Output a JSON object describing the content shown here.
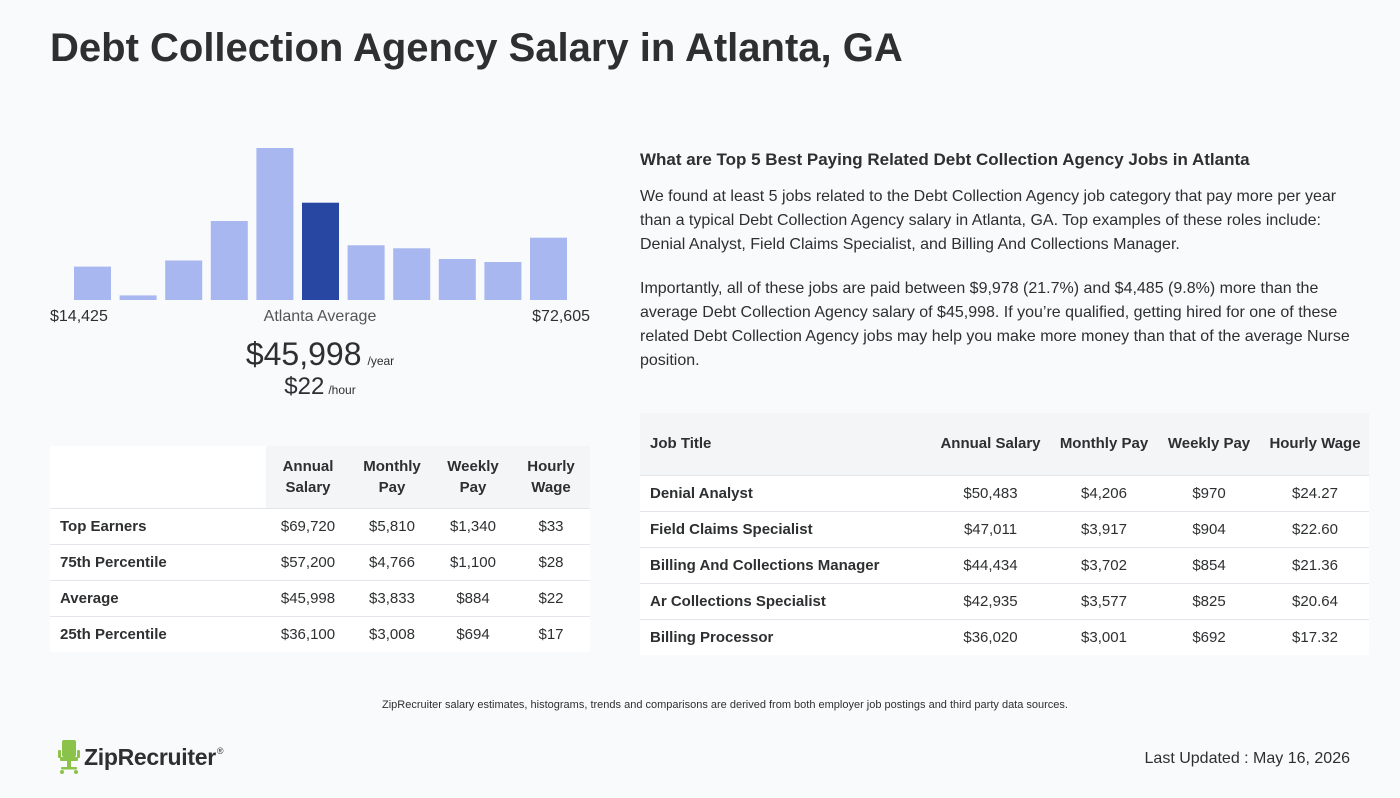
{
  "page": {
    "title": "Debt Collection Agency Salary in Atlanta, GA"
  },
  "histogram": {
    "min_label": "$14,425",
    "max_label": "$72,605",
    "avg_label": "Atlanta Average",
    "bar_color": "#a8b7f0",
    "highlight_color": "#2747a3"
  },
  "average": {
    "yearly": "$45,998",
    "yearly_unit": "/year",
    "hourly": "$22",
    "hourly_unit": "/hour"
  },
  "chart_data": {
    "type": "bar",
    "title": "",
    "xlabel": "",
    "ylabel": "",
    "categories": [
      "1",
      "2",
      "3",
      "4",
      "5",
      "6",
      "7",
      "8",
      "9",
      "10",
      "11"
    ],
    "values": [
      22,
      3,
      26,
      52,
      100,
      64,
      36,
      34,
      27,
      25,
      41
    ],
    "highlight_index": 5,
    "ylim": [
      0,
      100
    ],
    "grid": false
  },
  "percentile_table": {
    "headers": [
      "Annual Salary",
      "Monthly Pay",
      "Weekly Pay",
      "Hourly Wage"
    ],
    "rows": [
      {
        "label": "Top Earners",
        "annual": "$69,720",
        "monthly": "$5,810",
        "weekly": "$1,340",
        "hourly": "$33"
      },
      {
        "label": "75th Percentile",
        "annual": "$57,200",
        "monthly": "$4,766",
        "weekly": "$1,100",
        "hourly": "$28"
      },
      {
        "label": "Average",
        "annual": "$45,998",
        "monthly": "$3,833",
        "weekly": "$884",
        "hourly": "$22"
      },
      {
        "label": "25th Percentile",
        "annual": "$36,100",
        "monthly": "$3,008",
        "weekly": "$694",
        "hourly": "$17"
      }
    ]
  },
  "related": {
    "heading": "What are Top 5 Best Paying Related Debt Collection Agency Jobs in Atlanta",
    "paragraph1": "We found at least 5 jobs related to the Debt Collection Agency job category that pay more per year than a typical Debt Collection Agency salary in Atlanta, GA. Top examples of these roles include: Denial Analyst, Field Claims Specialist, and Billing And Collections Manager.",
    "paragraph2": "Importantly, all of these jobs are paid between $9,978 (21.7%) and $4,485 (9.8%) more than the average Debt Collection Agency salary of $45,998. If you’re qualified, getting hired for one of these related Debt Collection Agency jobs may help you make more money than that of the average Nurse position."
  },
  "jobs_table": {
    "headers": [
      "Job Title",
      "Annual Salary",
      "Monthly Pay",
      "Weekly Pay",
      "Hourly Wage"
    ],
    "rows": [
      {
        "title": "Denial Analyst",
        "annual": "$50,483",
        "monthly": "$4,206",
        "weekly": "$970",
        "hourly": "$24.27"
      },
      {
        "title": "Field Claims Specialist",
        "annual": "$47,011",
        "monthly": "$3,917",
        "weekly": "$904",
        "hourly": "$22.60"
      },
      {
        "title": "Billing And Collections Manager",
        "annual": "$44,434",
        "monthly": "$3,702",
        "weekly": "$854",
        "hourly": "$21.36"
      },
      {
        "title": "Ar Collections Specialist",
        "annual": "$42,935",
        "monthly": "$3,577",
        "weekly": "$825",
        "hourly": "$20.64"
      },
      {
        "title": "Billing Processor",
        "annual": "$36,020",
        "monthly": "$3,001",
        "weekly": "$692",
        "hourly": "$17.32"
      }
    ]
  },
  "footer": {
    "disclaimer": "ZipRecruiter salary estimates, histograms, trends and comparisons are derived from both employer job postings and third party data sources.",
    "logo_text": "ZipRecruiter",
    "logo_mark": "®",
    "logo_color": "#8bc34a",
    "last_updated": "Last Updated : May 16, 2026"
  }
}
